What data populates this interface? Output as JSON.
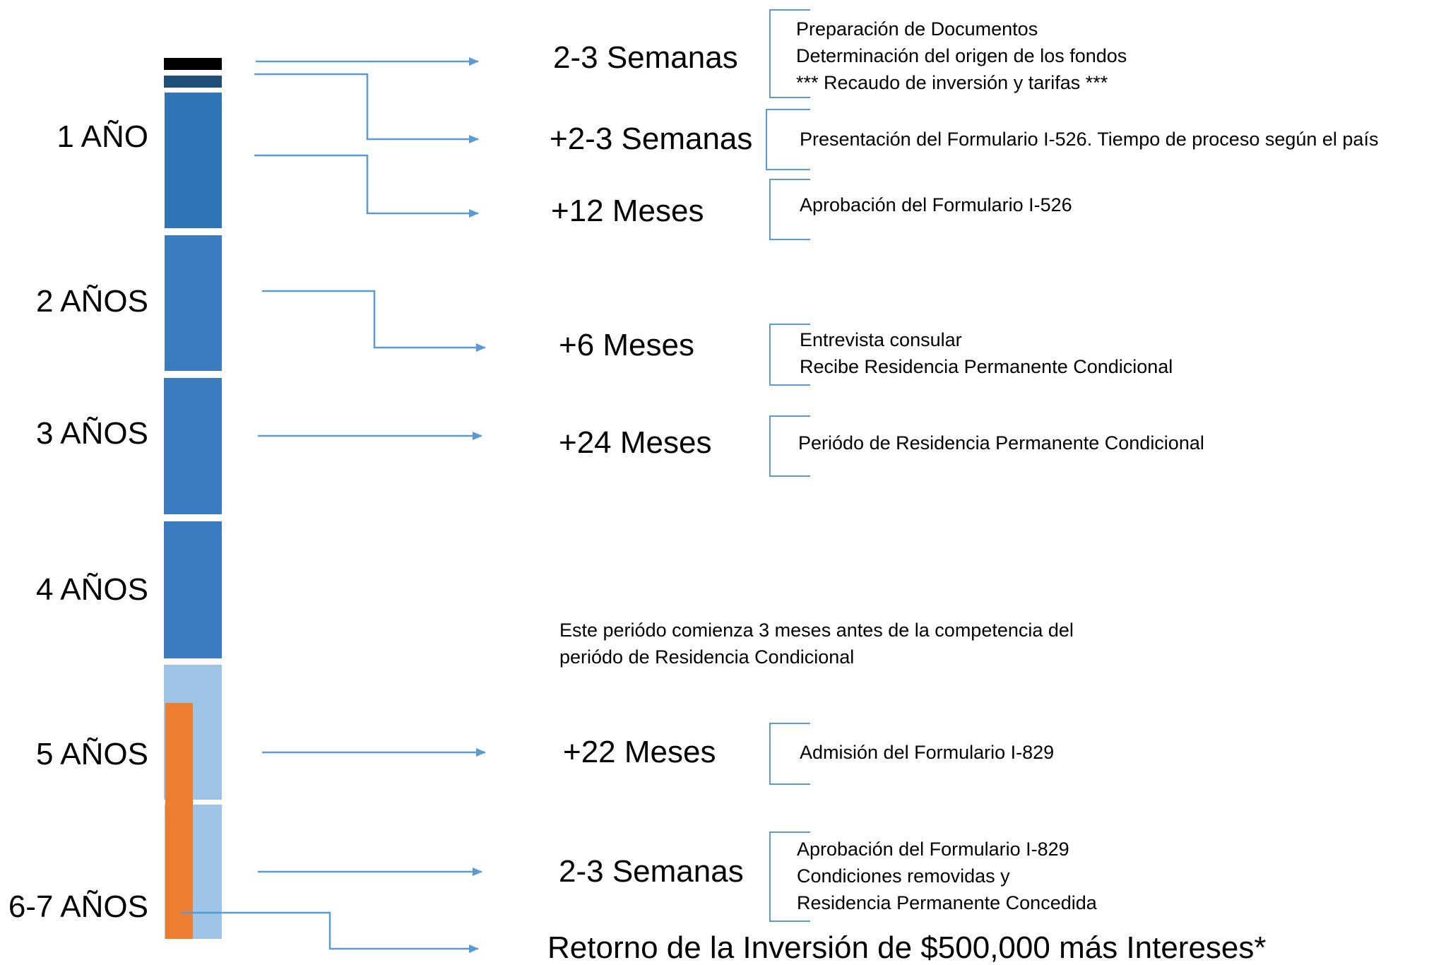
{
  "year_labels": {
    "y1": "1 AÑO",
    "y2": "2 AÑOS",
    "y3": "3 AÑOS",
    "y4": "4 AÑOS",
    "y5": "5 AÑOS",
    "y6": "6-7  AÑOS"
  },
  "steps": [
    {
      "duration": "2-3 Semanas",
      "lines": [
        "Preparación de Documentos",
        "Determinación del origen de los fondos",
        "*** Recaudo de inversión y tarifas ***"
      ]
    },
    {
      "duration": "+2-3 Semanas",
      "lines": [
        "Presentación del Formulario I-526. Tiempo de proceso según el país"
      ]
    },
    {
      "duration": "+12 Meses",
      "lines": [
        "Aprobación del Formulario I-526"
      ]
    },
    {
      "duration": "+6 Meses",
      "lines": [
        "Entrevista consular",
        "Recibe Residencia Permanente Condicional"
      ]
    },
    {
      "duration": "+24 Meses",
      "lines": [
        "Periódo de Residencia Permanente Condicional"
      ]
    },
    {
      "duration": "+22 Meses",
      "lines": [
        "Admisión del Formulario I-829"
      ]
    },
    {
      "duration": "2-3 Semanas",
      "lines": [
        "Aprobación del Formulario I-829",
        "Condiciones removidas y",
        "Residencia Permanente Concedida"
      ]
    }
  ],
  "note": {
    "line1": "Este periódo comienza 3 meses antes de la competencia del",
    "line2": "periódo de Residencia Condicional"
  },
  "final_return": "Retorno de la Inversión de $500,000 más Intereses*",
  "colors": {
    "black_block": "#000000",
    "navy_block": "#1F4E79",
    "blue_dark": "#2E75B6",
    "blue_mid": "#3B7BBF",
    "blue_light": "#9DC3E6",
    "orange": "#ED7D31",
    "arrow": "#5B9BD5"
  }
}
